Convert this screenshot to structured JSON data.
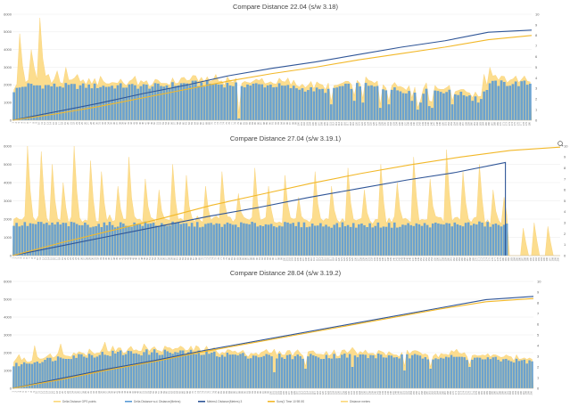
{
  "colors": {
    "delta_gps": "#fbd77a",
    "delta_bars": "#5b9bd5",
    "cum_dist": "#2f5597",
    "cum_time": "#f2b829",
    "grid": "#e4e4e4",
    "axis_text": "#666666"
  },
  "legend_items": [
    "Delta Distance GPS points",
    "Delta Distance w.d. Distance(Meters)",
    "Meters1 Distance(Meters) 3",
    "Sum(1 Time 10 9B 5S",
    "Distance meters"
  ],
  "chart_data": [
    {
      "type": "bar",
      "title": "Compare Distance 22.04 (s/w 3.18)",
      "ylim": [
        0,
        6000
      ],
      "yticks": [
        "0",
        "1000",
        "2000",
        "3000",
        "4000",
        "5000",
        "6000"
      ],
      "y2lim": [
        0,
        10
      ],
      "y2ticks": [
        "0",
        "1",
        "2",
        "3",
        "4",
        "5",
        "6",
        "7",
        "8",
        "9",
        "10"
      ],
      "x_count": 180,
      "x_label_start": 1,
      "x_label_step": 10,
      "series": [
        {
          "name": "Delta Distance w.d. Distance(Meters)",
          "kind": "bar",
          "axis": "left",
          "breakpoints": [
            [
              0,
              1700
            ],
            [
              4,
              2000
            ],
            [
              20,
              1950
            ],
            [
              40,
              1950
            ],
            [
              50,
              1950
            ],
            [
              60,
              2100
            ],
            [
              75,
              2050
            ],
            [
              90,
              2000
            ],
            [
              100,
              1800
            ],
            [
              108,
              1700
            ],
            [
              113,
              1900
            ],
            [
              120,
              2000
            ],
            [
              127,
              1850
            ],
            [
              135,
              1700
            ],
            [
              140,
              1600
            ],
            [
              145,
              1700
            ],
            [
              150,
              1650
            ],
            [
              155,
              1500
            ],
            [
              162,
              1300
            ],
            [
              165,
              2100
            ],
            [
              175,
              2100
            ],
            [
              179,
              2100
            ]
          ],
          "dips": [
            [
              78,
              100
            ],
            [
              110,
              900
            ],
            [
              118,
              1100
            ],
            [
              121,
              1000
            ],
            [
              130,
              900
            ],
            [
              138,
              1100
            ],
            [
              141,
              1000
            ],
            [
              152,
              900
            ],
            [
              159,
              1100
            ],
            [
              161,
              1000
            ],
            [
              127,
              700
            ],
            [
              140,
              600
            ],
            [
              144,
              800
            ],
            [
              145,
              700
            ]
          ]
        },
        {
          "name": "Delta Distance GPS points",
          "kind": "area",
          "axis": "left",
          "base_offset": 250,
          "spikes": [
            [
              2,
              4900
            ],
            [
              6,
              4000
            ],
            [
              7,
              3000
            ],
            [
              9,
              5800
            ],
            [
              10,
              3500
            ],
            [
              12,
              2600
            ],
            [
              15,
              2800
            ],
            [
              18,
              3000
            ],
            [
              22,
              2600
            ],
            [
              30,
              2500
            ],
            [
              42,
              2500
            ],
            [
              55,
              2400
            ],
            [
              70,
              2600
            ],
            [
              95,
              2400
            ],
            [
              163,
              2600
            ],
            [
              165,
              3000
            ]
          ]
        },
        {
          "name": "Meters1 Distance(Meters) 3",
          "kind": "line",
          "axis": "right",
          "values": [
            0,
            0.8,
            1.6,
            2.5,
            3.3,
            4.2,
            4.9,
            5.5,
            6.2,
            6.9,
            7.5,
            8.3,
            8.5
          ],
          "x_fraction_max": 1.0
        },
        {
          "name": "Distance meters",
          "kind": "line",
          "axis": "right",
          "values": [
            0,
            0.6,
            1.3,
            2.1,
            2.9,
            3.7,
            4.4,
            5.0,
            5.7,
            6.3,
            6.9,
            7.6,
            8.0
          ],
          "x_fraction_max": 1.0
        }
      ]
    },
    {
      "type": "bar",
      "title": "Compare Distance 27.04 (s/w 3.19.1)",
      "ylim": [
        0,
        6000
      ],
      "yticks": [
        "0",
        "1000",
        "2000",
        "3000",
        "4000",
        "5000",
        "6000"
      ],
      "y2lim": [
        0,
        10
      ],
      "y2ticks": [
        "0",
        "1",
        "2",
        "3",
        "4",
        "5",
        "6",
        "7",
        "8",
        "9",
        "10"
      ],
      "x_count": 200,
      "x_label_start": 1,
      "x_label_step": 10,
      "series": [
        {
          "name": "Delta Distance w.d. Distance(Meters)",
          "kind": "bar",
          "axis": "left",
          "breakpoints": [
            [
              0,
              1700
            ],
            [
              10,
              1750
            ],
            [
              30,
              1700
            ],
            [
              50,
              1750
            ],
            [
              70,
              1700
            ],
            [
              90,
              1720
            ],
            [
              110,
              1700
            ],
            [
              130,
              1680
            ],
            [
              150,
              1700
            ],
            [
              170,
              1750
            ],
            [
              180,
              1650
            ],
            [
              181,
              0
            ],
            [
              199,
              0
            ]
          ],
          "dips": []
        },
        {
          "name": "Delta Distance GPS points",
          "kind": "area",
          "axis": "left",
          "base_offset": 300,
          "spikes": [
            [
              5,
              6000
            ],
            [
              10,
              5700
            ],
            [
              14,
              5000
            ],
            [
              18,
              4000
            ],
            [
              22,
              6000
            ],
            [
              28,
              5200
            ],
            [
              32,
              4600
            ],
            [
              38,
              3800
            ],
            [
              42,
              5400
            ],
            [
              48,
              4200
            ],
            [
              53,
              3600
            ],
            [
              58,
              5000
            ],
            [
              63,
              4400
            ],
            [
              70,
              3800
            ],
            [
              76,
              4600
            ],
            [
              82,
              3400
            ],
            [
              88,
              4800
            ],
            [
              93,
              3800
            ],
            [
              99,
              4400
            ],
            [
              104,
              3200
            ],
            [
              110,
              4600
            ],
            [
              116,
              3800
            ],
            [
              122,
              4800
            ],
            [
              128,
              3600
            ],
            [
              134,
              5000
            ],
            [
              140,
              4000
            ],
            [
              146,
              5400
            ],
            [
              152,
              4200
            ],
            [
              158,
              5800
            ],
            [
              164,
              4600
            ],
            [
              170,
              5000
            ],
            [
              175,
              3600
            ],
            [
              179,
              3200
            ],
            [
              186,
              1500
            ],
            [
              190,
              1800
            ],
            [
              195,
              1600
            ]
          ]
        },
        {
          "name": "Meters1 Distance(Meters) 3",
          "kind": "line",
          "axis": "right",
          "values": [
            0,
            0.9,
            1.8,
            2.7,
            3.6,
            4.4,
            5.3,
            6.1,
            6.9,
            7.6,
            8.5
          ],
          "x_fraction_max": 0.9,
          "drop_to_zero": true
        },
        {
          "name": "Distance meters",
          "kind": "line",
          "axis": "right",
          "values": [
            0,
            1.2,
            2.3,
            3.4,
            4.6,
            5.6,
            6.6,
            7.5,
            8.3,
            9.0,
            9.6,
            9.9
          ],
          "x_fraction_max": 1.0
        }
      ]
    },
    {
      "type": "bar",
      "title": "Compare Distance 28.04 (s/w 3.19.2)",
      "ylim": [
        0,
        6000
      ],
      "yticks": [
        "0",
        "1000",
        "2000",
        "3000",
        "4000",
        "5000",
        "6000"
      ],
      "y2lim": [
        0,
        10
      ],
      "y2ticks": [
        "0",
        "1",
        "2",
        "3",
        "4",
        "5",
        "6",
        "7",
        "8",
        "9",
        "10"
      ],
      "x_count": 200,
      "x_label_start": 1,
      "x_label_step": 10,
      "series": [
        {
          "name": "Delta Distance w.d. Distance(Meters)",
          "kind": "bar",
          "axis": "left",
          "breakpoints": [
            [
              0,
              1300
            ],
            [
              20,
              1800
            ],
            [
              40,
              2000
            ],
            [
              55,
              2050
            ],
            [
              70,
              2000
            ],
            [
              90,
              1850
            ],
            [
              110,
              1800
            ],
            [
              130,
              1850
            ],
            [
              150,
              1800
            ],
            [
              170,
              1750
            ],
            [
              190,
              1600
            ],
            [
              199,
              1500
            ]
          ],
          "dips": [
            [
              100,
              900
            ],
            [
              112,
              1100
            ],
            [
              130,
              1200
            ],
            [
              150,
              1000
            ],
            [
              160,
              1100
            ],
            [
              175,
              1200
            ]
          ]
        },
        {
          "name": "Delta Distance GPS points",
          "kind": "area",
          "axis": "left",
          "base_offset": 200,
          "spikes": [
            [
              2,
              1900
            ],
            [
              8,
              2400
            ],
            [
              18,
              2500
            ],
            [
              35,
              2600
            ],
            [
              50,
              2500
            ],
            [
              70,
              2400
            ],
            [
              100,
              2200
            ],
            [
              130,
              2300
            ],
            [
              170,
              2200
            ]
          ]
        },
        {
          "name": "Meters1 Distance(Meters) 3",
          "kind": "line",
          "axis": "right",
          "values": [
            0,
            0.9,
            1.8,
            2.6,
            3.5,
            4.3,
            5.1,
            5.9,
            6.7,
            7.5,
            8.3,
            8.6
          ],
          "x_fraction_max": 1.0
        },
        {
          "name": "Distance meters",
          "kind": "line",
          "axis": "right",
          "values": [
            0,
            0.8,
            1.7,
            2.5,
            3.4,
            4.2,
            5.0,
            5.8,
            6.6,
            7.4,
            8.1,
            8.4
          ],
          "x_fraction_max": 1.0
        }
      ]
    }
  ]
}
